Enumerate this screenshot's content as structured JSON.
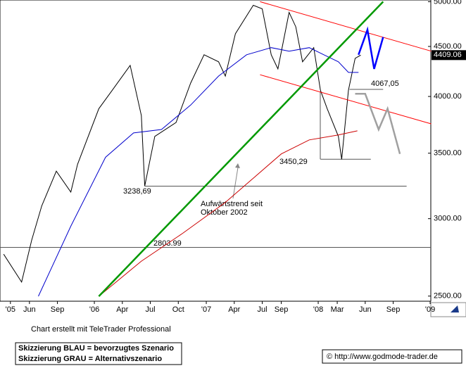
{
  "chart_data": {
    "type": "line",
    "log_y": true,
    "xlim": [
      2005.157,
      2009.006
    ],
    "ylim": [
      2470,
      5020
    ],
    "xticks": [
      {
        "value": 2005.25,
        "label": "'05"
      },
      {
        "value": 2005.42,
        "label": "Jun"
      },
      {
        "value": 2005.67,
        "label": "Sep"
      },
      {
        "value": 2006,
        "label": "'06"
      },
      {
        "value": 2006.25,
        "label": "Apr"
      },
      {
        "value": 2006.5,
        "label": "Jul"
      },
      {
        "value": 2006.75,
        "label": "Oct"
      },
      {
        "value": 2007,
        "label": "'07"
      },
      {
        "value": 2007.25,
        "label": "Apr"
      },
      {
        "value": 2007.5,
        "label": "Jul"
      },
      {
        "value": 2007.67,
        "label": "Sep"
      },
      {
        "value": 2008,
        "label": "'08"
      },
      {
        "value": 2008.17,
        "label": "Mar"
      },
      {
        "value": 2008.42,
        "label": "Jun"
      },
      {
        "value": 2008.67,
        "label": "Sep"
      },
      {
        "value": 2009,
        "label": "'09"
      }
    ],
    "yticks": [
      {
        "value": 2500,
        "label": "2500.00"
      },
      {
        "value": 3000,
        "label": "3000.00"
      },
      {
        "value": 3500,
        "label": "3500.00"
      },
      {
        "value": 4000,
        "label": "4000.00"
      },
      {
        "value": 4500,
        "label": "4500.00"
      },
      {
        "value": 5000,
        "label": "5000.00"
      }
    ],
    "last_value": 4409.06,
    "series": [
      {
        "color": "#000000",
        "x": [
          2005.19,
          2005.35,
          2005.44,
          2005.53,
          2005.66,
          2005.79,
          2005.85,
          2006.04,
          2006.16,
          2006.32,
          2006.42,
          2006.45,
          2006.54,
          2006.73,
          2006.86,
          2006.98,
          2007.11,
          2007.17,
          2007.26,
          2007.42,
          2007.5,
          2007.58,
          2007.64,
          2007.74,
          2007.8,
          2007.86,
          2007.96,
          2008.02,
          2008.08,
          2008.18,
          2008.21,
          2008.27,
          2008.33,
          2008.38
        ],
        "values": [
          2759,
          2584,
          2852,
          3092,
          3355,
          3194,
          3410,
          3887,
          4059,
          4304,
          3824,
          3239,
          3641,
          3762,
          4128,
          4413,
          4340,
          4197,
          4636,
          4958,
          4917,
          4413,
          4268,
          4876,
          4713,
          4340,
          4487,
          4059,
          3887,
          3641,
          3450,
          4059,
          4376,
          4409
        ]
      },
      {
        "color": "#0000cc",
        "x": [
          2005.5,
          2005.79,
          2006.1,
          2006.35,
          2006.6,
          2006.86,
          2007.11,
          2007.36,
          2007.58,
          2007.74,
          2007.92,
          2008.05,
          2008.18,
          2008.27,
          2008.36
        ],
        "values": [
          2499,
          2947,
          3466,
          3671,
          3701,
          3920,
          4197,
          4413,
          4487,
          4450,
          4487,
          4413,
          4340,
          4233,
          4233
        ]
      },
      {
        "color": "#cc0000",
        "x": [
          2006.04,
          2006.42,
          2006.79,
          2007.17,
          2007.42,
          2007.67,
          2007.92,
          2008.18,
          2008.35
        ],
        "values": [
          2499,
          2714,
          2899,
          3117,
          3300,
          3494,
          3611,
          3653,
          3689
        ]
      },
      {
        "color": "#ff0000",
        "x": [
          2007.48,
          2009.01
        ],
        "values": [
          5000,
          4450
        ]
      },
      {
        "color": "#ff0000",
        "x": [
          2007.48,
          2009.01
        ],
        "values": [
          4210,
          3750
        ]
      },
      {
        "color": "#009900",
        "x": [
          2006.04,
          2008.58
        ],
        "values": [
          2499,
          5000
        ]
      },
      {
        "color": "#0000ff",
        "x": [
          2008.36,
          2008.44,
          2008.5,
          2008.58
        ],
        "values": [
          4413,
          4680,
          4268,
          4600
        ]
      },
      {
        "color": "#a0a0a0",
        "x": [
          2008.33,
          2008.42,
          2008.54,
          2008.62,
          2008.73
        ],
        "values": [
          4025,
          4025,
          3701,
          3887,
          3494
        ]
      }
    ],
    "levels": [
      {
        "value": 3238.69,
        "label": "3238,69",
        "x": [
          2006.45,
          2008.79
        ]
      },
      {
        "value": 2803.99,
        "label": "2803.99",
        "x": [
          2005.157,
          2009.006
        ]
      },
      {
        "value": 3450.29,
        "label": "3450,29",
        "x": [
          2008.02,
          2008.47
        ]
      },
      {
        "value": 4067.05,
        "label": "4067,05",
        "x": [
          2008.28,
          2008.58
        ]
      }
    ],
    "annotation": [
      "Aufwärtstrend seit",
      "Oktober 2002"
    ],
    "credit": "Chart erstellt mit TeleTrader Professional",
    "legend_lines": [
      "Skizzierung BLAU = bevorzugtes Szenario",
      "Skizzierung GRAU = Alternativszenario"
    ],
    "copyright": "© http://www.godmode-trader.de"
  }
}
